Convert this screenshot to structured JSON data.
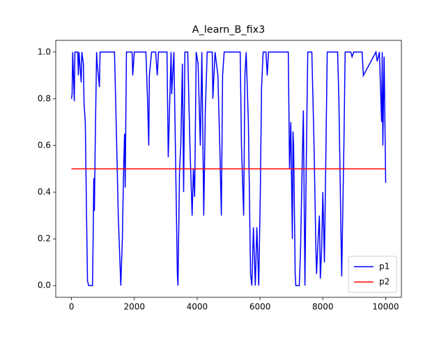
{
  "chart_data": {
    "type": "line",
    "title": "A_learn_B_fix3",
    "xlim": [
      -500,
      10500
    ],
    "xticks": [
      0,
      2000,
      4000,
      6000,
      8000,
      10000
    ],
    "ylim": [
      -0.05,
      1.05
    ],
    "yticks": [
      {
        "value": 0,
        "label": "0.0"
      },
      0.2,
      0.4,
      0.6,
      0.8,
      {
        "value": 1,
        "label": "1.0"
      }
    ],
    "legend": "lower right",
    "series": [
      {
        "name": "p1",
        "color": "#0000ff",
        "x": [
          0,
          20,
          40,
          90,
          110,
          200,
          220,
          240,
          310,
          330,
          380,
          400,
          440,
          470,
          510,
          550,
          670,
          690,
          710,
          730,
          750,
          800,
          820,
          890,
          910,
          1370,
          1440,
          1490,
          1530,
          1570,
          1620,
          1660,
          1690,
          1710,
          1750,
          1930,
          1950,
          2000,
          2370,
          2420,
          2460,
          2480,
          2550,
          2680,
          2730,
          2770,
          3040,
          3080,
          3130,
          3170,
          3190,
          3260,
          3330,
          3370,
          3390,
          3440,
          3480,
          3530,
          3570,
          3610,
          3700,
          3770,
          3840,
          3880,
          3920,
          3970,
          4030,
          4100,
          4150,
          4210,
          4260,
          4320,
          4480,
          4500,
          4570,
          4660,
          4720,
          4770,
          4810,
          4860,
          5370,
          5410,
          5480,
          5520,
          5560,
          5630,
          5700,
          5740,
          5790,
          5850,
          5900,
          5960,
          6010,
          6050,
          6100,
          6190,
          6230,
          6270,
          6900,
          6940,
          6980,
          7030,
          7050,
          7070,
          7120,
          7140,
          7250,
          7290,
          7340,
          7380,
          7430,
          7470,
          7520,
          7650,
          7720,
          7780,
          7800,
          7850,
          7890,
          7920,
          7960,
          8000,
          8050,
          8090,
          8140,
          8470,
          8510,
          8540,
          8580,
          8600,
          8670,
          8710,
          8890,
          8930,
          8980,
          9250,
          9290,
          9690,
          9730,
          9800,
          9870,
          9890,
          9910,
          9950,
          10000
        ],
        "values": [
          0.8,
          0.82,
          1.0,
          0.79,
          1.0,
          1.0,
          0.9,
          1.0,
          0.87,
          1.0,
          0.95,
          0.78,
          0.7,
          0.4,
          0.02,
          0,
          0,
          0.2,
          0.46,
          0.32,
          0.55,
          1.0,
          0.95,
          0.85,
          1.0,
          1.0,
          0.6,
          0.3,
          0.15,
          0,
          0.2,
          0.5,
          0.65,
          0.42,
          1.0,
          1.0,
          0.9,
          1.0,
          1.0,
          0.8,
          0.6,
          0.9,
          1.0,
          1.0,
          0.9,
          1.0,
          1.0,
          0.55,
          0.8,
          1.0,
          0.82,
          1.0,
          0.4,
          0.05,
          0,
          0.5,
          0.6,
          0.95,
          0.4,
          1.0,
          1.0,
          0.6,
          0.3,
          0.5,
          0.38,
          1.0,
          0.95,
          0.6,
          1.0,
          0.3,
          0.75,
          1.0,
          1.0,
          0.8,
          1.0,
          0.9,
          0.6,
          0.3,
          0.9,
          1.0,
          1.0,
          0.6,
          0.3,
          0.9,
          1.0,
          0.7,
          0.05,
          0,
          0.25,
          0,
          0.25,
          0,
          0.4,
          0.85,
          1.0,
          1.0,
          0.9,
          1.0,
          1.0,
          0.5,
          0.7,
          0.2,
          0.66,
          0.6,
          0.05,
          0,
          0,
          0.15,
          0.5,
          0.75,
          0,
          0.5,
          1.0,
          1.0,
          0.6,
          0.15,
          0.05,
          0.2,
          0.3,
          0.03,
          0.15,
          0.4,
          0.1,
          0.5,
          1.0,
          1.0,
          0.8,
          0.55,
          0.2,
          0.04,
          0.6,
          1.0,
          1.0,
          0.98,
          1.0,
          1.0,
          0.9,
          1.0,
          0.96,
          1.0,
          0.7,
          1.0,
          0.6,
          0.98,
          0.44
        ]
      },
      {
        "name": "p2",
        "color": "#ff0000",
        "x": [
          0,
          10000
        ],
        "values": [
          0.5,
          0.5
        ]
      }
    ]
  }
}
